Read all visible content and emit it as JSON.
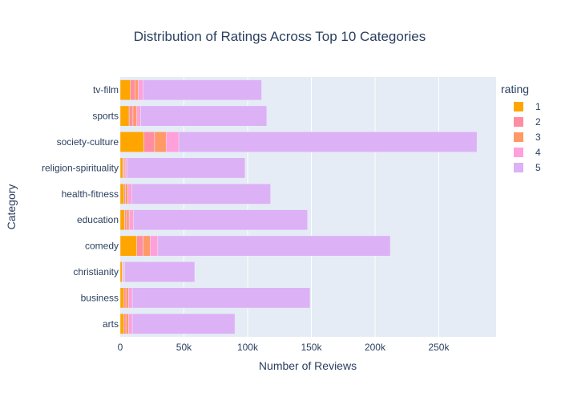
{
  "chart_data": {
    "type": "bar",
    "orientation": "horizontal",
    "barmode": "stack",
    "title": "Distribution of Ratings Across Top 10 Categories",
    "xlabel": "Number of Reviews",
    "ylabel": "Category",
    "xlim": [
      0,
      295000
    ],
    "x_ticks": [
      0,
      50000,
      100000,
      150000,
      200000,
      250000
    ],
    "x_tick_labels": [
      "0",
      "50k",
      "100k",
      "150k",
      "200k",
      "250k"
    ],
    "grid": true,
    "legend_title": "rating",
    "legend_position": "right",
    "categories": [
      "arts",
      "business",
      "christianity",
      "comedy",
      "education",
      "health-fitness",
      "religion-spirituality",
      "society-culture",
      "sports",
      "tv-film"
    ],
    "series": [
      {
        "name": "1",
        "color": "#FFA500",
        "values": [
          3000,
          3000,
          1500,
          13000,
          3500,
          3000,
          2000,
          18500,
          7000,
          8000
        ]
      },
      {
        "name": "2",
        "color": "#FF8DA1",
        "values": [
          1500,
          1500,
          500,
          5000,
          1500,
          1200,
          800,
          8500,
          3000,
          3500
        ]
      },
      {
        "name": "3",
        "color": "#FF9966",
        "values": [
          2000,
          2000,
          500,
          5500,
          2000,
          1800,
          1000,
          9000,
          3000,
          2500
        ]
      },
      {
        "name": "4",
        "color": "#FFA0DA",
        "values": [
          3000,
          3000,
          1000,
          6000,
          3500,
          3000,
          1500,
          10000,
          3000,
          4000
        ]
      },
      {
        "name": "5",
        "color": "#DDB1F5",
        "values": [
          80500,
          139500,
          55000,
          182500,
          136500,
          109000,
          92700,
          234000,
          99000,
          93000
        ]
      }
    ]
  }
}
